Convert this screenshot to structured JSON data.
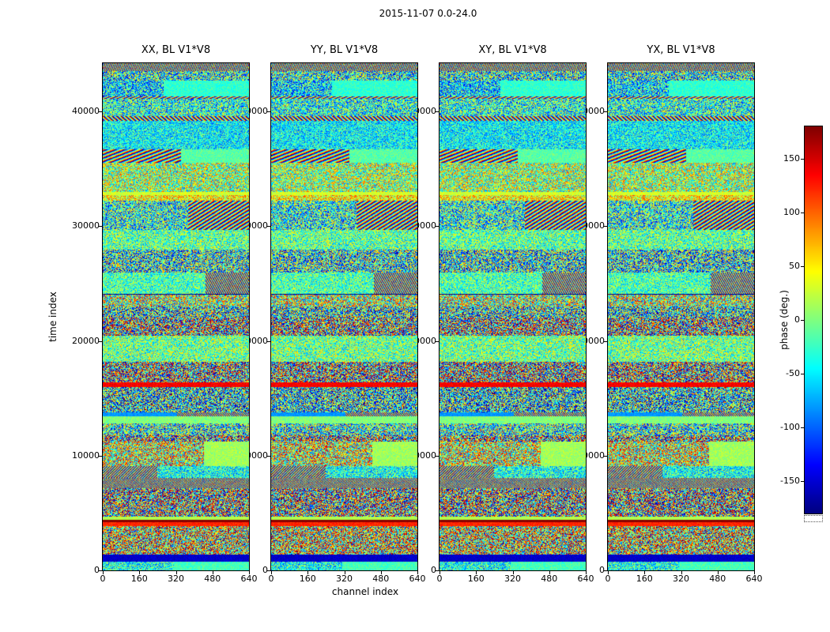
{
  "figure": {
    "title": "2015-11-07 0.0-24.0",
    "background": "#ffffff"
  },
  "axes": {
    "xlabel": "channel index",
    "ylabel": "time index",
    "xlim": [
      0,
      640
    ],
    "ylim": [
      0,
      44200
    ],
    "xticks": [
      0,
      160,
      320,
      480,
      640
    ],
    "yticks": [
      0,
      10000,
      20000,
      30000,
      40000
    ]
  },
  "colorbar": {
    "label": "phase (deg.)",
    "ticks": [
      150,
      100,
      50,
      0,
      -50,
      -100,
      -150
    ],
    "clim": [
      -180,
      180
    ],
    "colormap": "jet"
  },
  "chart_data": {
    "type": "heatmap",
    "title": "2015-11-07 0.0-24.0",
    "panels": [
      {
        "title": "XX, BL V1*V8",
        "polarization": "XX",
        "baseline": "V1*V8"
      },
      {
        "title": "YY, BL V1*V8",
        "polarization": "YY",
        "baseline": "V1*V8"
      },
      {
        "title": "XY, BL V1*V8",
        "polarization": "XY",
        "baseline": "V1*V8"
      },
      {
        "title": "YX, BL V1*V8",
        "polarization": "YX",
        "baseline": "V1*V8"
      }
    ],
    "xlabel": "channel index",
    "ylabel": "time index",
    "x_range": [
      0,
      640
    ],
    "y_range": [
      0,
      44200
    ],
    "xticks": [
      0,
      160,
      320,
      480,
      640
    ],
    "yticks": [
      0,
      10000,
      20000,
      30000,
      40000
    ],
    "value_label": "phase (deg.)",
    "value_range": [
      -180,
      180
    ],
    "colorbar_ticks": [
      150,
      100,
      50,
      0,
      -50,
      -100,
      -150
    ],
    "colormap": "jet",
    "legend_position": "right-colorbar",
    "grid": false,
    "data_description": "Interferometric visibility phase waterfall (time vs channel) for baseline V1*V8 on 2015-11-07, hours 0.0-24.0. Values are pseudo-random phases in [-180,180] degrees forming horizontal bands: wideband speckle noise, flat low-phase (green/cyan) rows, diagonal fringe stripes, and thin near -180 deg dark rows; band structure is shared across the four polarization panels.",
    "procedural_seed": 42
  }
}
